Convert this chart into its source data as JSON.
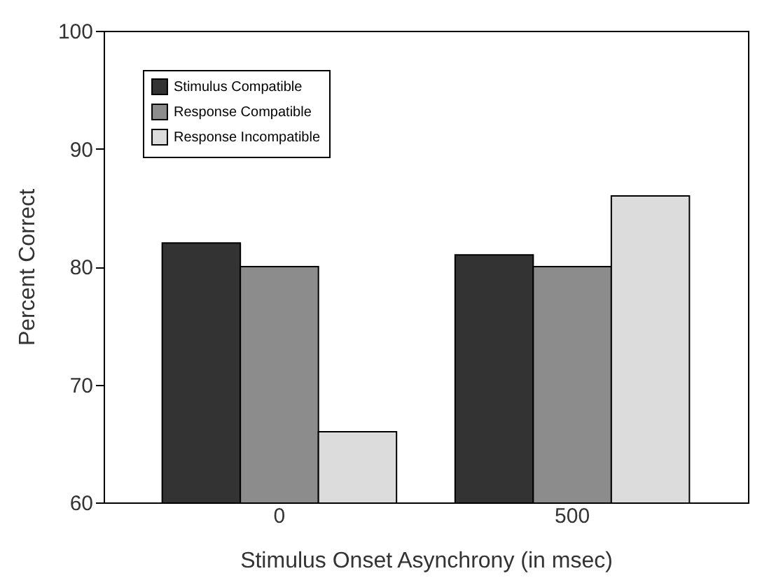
{
  "chart_data": {
    "type": "bar",
    "xlabel": "Stimulus Onset Asynchrony (in msec)",
    "ylabel": "Percent Correct",
    "categories": [
      "0",
      "500"
    ],
    "series": [
      {
        "name": "Stimulus Compatible",
        "color": "#333333",
        "values": [
          82,
          81
        ]
      },
      {
        "name": "Response Compatible",
        "color": "#8c8c8c",
        "values": [
          80,
          80
        ]
      },
      {
        "name": "Response Incompatible",
        "color": "#dcdcdc",
        "values": [
          66,
          86
        ]
      }
    ],
    "ylim": [
      60,
      100
    ],
    "yticks": [
      60,
      70,
      80,
      90,
      100
    ],
    "grid": false,
    "legend": "top left"
  }
}
